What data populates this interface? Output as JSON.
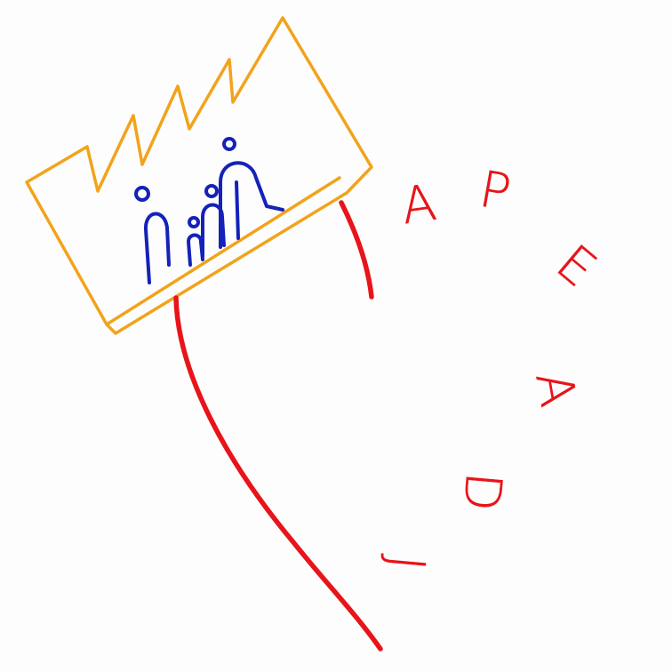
{
  "logo": {
    "name": "apeadj-crown-logo",
    "crown_color": "#f2a31b",
    "figures_color": "#1422b8",
    "lines_color": "#e8141a",
    "letters": [
      "A",
      "P",
      "E",
      "A",
      "D",
      "J"
    ]
  }
}
